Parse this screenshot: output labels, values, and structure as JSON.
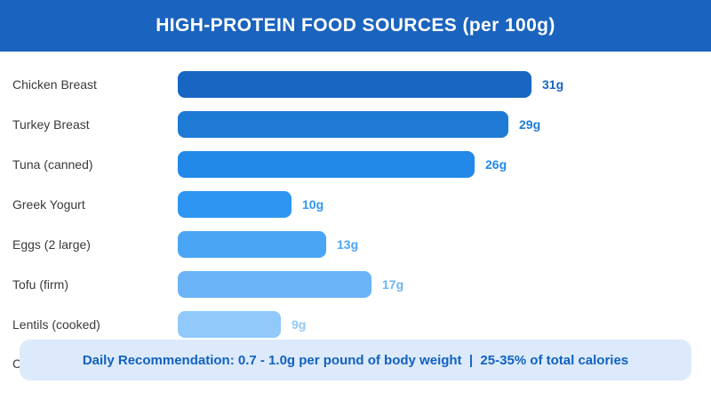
{
  "header": {
    "title": "HIGH-PROTEIN FOOD SOURCES (per 100g)",
    "bg_color": "#1A63BE",
    "text_color": "#FFFFFF"
  },
  "chart_data": {
    "type": "bar",
    "orientation": "horizontal",
    "title": "HIGH-PROTEIN FOOD SOURCES (per 100g)",
    "unit": "g",
    "categories": [
      "Chicken Breast",
      "Turkey Breast",
      "Tuna (canned)",
      "Greek Yogurt",
      "Eggs (2 large)",
      "Tofu (firm)",
      "Lentils (cooked)"
    ],
    "values": [
      31,
      29,
      26,
      10,
      13,
      17,
      9
    ],
    "value_labels": [
      "31g",
      "29g",
      "26g",
      "10g",
      "13g",
      "17g",
      "9g"
    ],
    "bar_colors": [
      "#1865C2",
      "#1E7AD4",
      "#2289E8",
      "#2E96F2",
      "#4AA5F5",
      "#6BB4F7",
      "#90C9FA"
    ],
    "category_label_color": "#3A3A3A",
    "xlim": [
      0,
      45
    ],
    "grid": false,
    "legend": false,
    "partially_hidden_row": {
      "visible_label": "C"
    }
  },
  "footer": {
    "text": "Daily Recommendation: 0.7 - 1.0g per pound of body weight  |  25-35% of total calories",
    "bg_color": "#DCEAFB",
    "text_color": "#1261C1"
  }
}
